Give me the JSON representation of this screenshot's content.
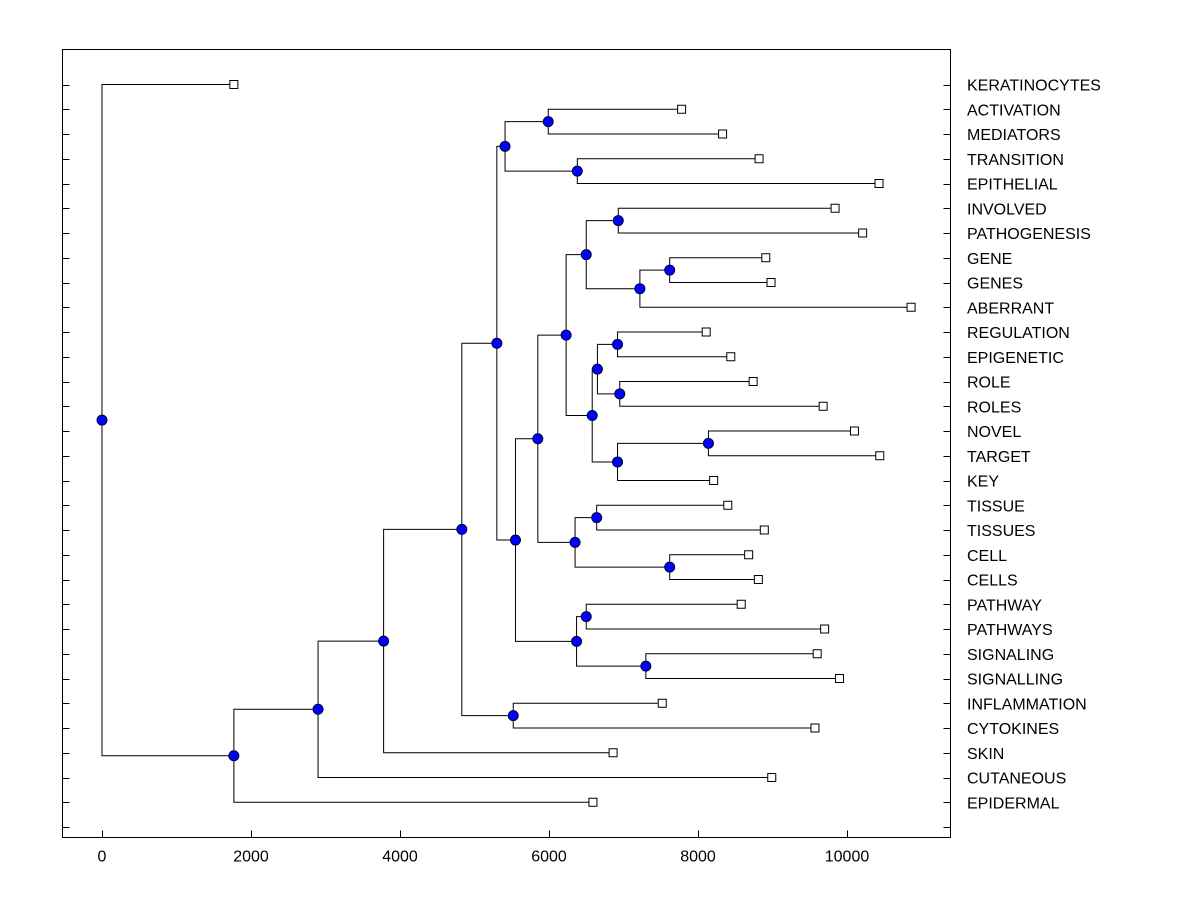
{
  "chart_data": {
    "type": "dendrogram",
    "x_axis": {
      "ticks": [
        0,
        2000,
        4000,
        6000,
        8000,
        10000
      ],
      "xlim": [
        -540,
        11400
      ]
    },
    "leaves": [
      {
        "label": "KERATINOCYTES",
        "height": 1770
      },
      {
        "label": "ACTIVATION",
        "height": 7780
      },
      {
        "label": "MEDIATORS",
        "height": 8330
      },
      {
        "label": "TRANSITION",
        "height": 8820
      },
      {
        "label": "EPITHELIAL",
        "height": 10430
      },
      {
        "label": "INVOLVED",
        "height": 9840
      },
      {
        "label": "PATHOGENESIS",
        "height": 10210
      },
      {
        "label": "GENE",
        "height": 8910
      },
      {
        "label": "GENES",
        "height": 8980
      },
      {
        "label": "ABERRANT",
        "height": 10860
      },
      {
        "label": "REGULATION",
        "height": 8110
      },
      {
        "label": "EPIGENETIC",
        "height": 8440
      },
      {
        "label": "ROLE",
        "height": 8740
      },
      {
        "label": "ROLES",
        "height": 9680
      },
      {
        "label": "NOVEL",
        "height": 10100
      },
      {
        "label": "TARGET",
        "height": 10440
      },
      {
        "label": "KEY",
        "height": 8210
      },
      {
        "label": "TISSUE",
        "height": 8400
      },
      {
        "label": "TISSUES",
        "height": 8890
      },
      {
        "label": "CELL",
        "height": 8680
      },
      {
        "label": "CELLS",
        "height": 8810
      },
      {
        "label": "PATHWAY",
        "height": 8580
      },
      {
        "label": "PATHWAYS",
        "height": 9700
      },
      {
        "label": "SIGNALING",
        "height": 9600
      },
      {
        "label": "SIGNALLING",
        "height": 9900
      },
      {
        "label": "INFLAMMATION",
        "height": 7520
      },
      {
        "label": "CYTOKINES",
        "height": 9570
      },
      {
        "label": "SKIN",
        "height": 6860
      },
      {
        "label": "CUTANEOUS",
        "height": 8990
      },
      {
        "label": "EPIDERMAL",
        "height": 6590
      }
    ],
    "merges": [
      {
        "id": 1,
        "children": [
          "L1",
          "L2"
        ],
        "height": 5990
      },
      {
        "id": 2,
        "children": [
          "L3",
          "L4"
        ],
        "height": 6380
      },
      {
        "id": 3,
        "children": [
          "N1",
          "N2"
        ],
        "height": 5410
      },
      {
        "id": 4,
        "children": [
          "L5",
          "L6"
        ],
        "height": 6930
      },
      {
        "id": 5,
        "children": [
          "L7",
          "L8"
        ],
        "height": 7620
      },
      {
        "id": 6,
        "children": [
          "N5",
          "L9"
        ],
        "height": 7220
      },
      {
        "id": 7,
        "children": [
          "N4",
          "N6"
        ],
        "height": 6500
      },
      {
        "id": 8,
        "children": [
          "L10",
          "L11"
        ],
        "height": 6920
      },
      {
        "id": 9,
        "children": [
          "L12",
          "L13"
        ],
        "height": 6950
      },
      {
        "id": 10,
        "children": [
          "N8",
          "N9"
        ],
        "height": 6650
      },
      {
        "id": 11,
        "children": [
          "L14",
          "L15"
        ],
        "height": 8140
      },
      {
        "id": 12,
        "children": [
          "N11",
          "L16"
        ],
        "height": 6920
      },
      {
        "id": 13,
        "children": [
          "N10",
          "N12"
        ],
        "height": 6580
      },
      {
        "id": 14,
        "children": [
          "N7",
          "N13"
        ],
        "height": 6230
      },
      {
        "id": 15,
        "children": [
          "L17",
          "L18"
        ],
        "height": 6640
      },
      {
        "id": 16,
        "children": [
          "L19",
          "L20"
        ],
        "height": 7620
      },
      {
        "id": 17,
        "children": [
          "N15",
          "N16"
        ],
        "height": 6350
      },
      {
        "id": 18,
        "children": [
          "N14",
          "N17"
        ],
        "height": 5850
      },
      {
        "id": 19,
        "children": [
          "L21",
          "L22"
        ],
        "height": 6500
      },
      {
        "id": 20,
        "children": [
          "L23",
          "L24"
        ],
        "height": 7300
      },
      {
        "id": 21,
        "children": [
          "N19",
          "N20"
        ],
        "height": 6370
      },
      {
        "id": 22,
        "children": [
          "N18",
          "N21"
        ],
        "height": 5550
      },
      {
        "id": 23,
        "children": [
          "N3",
          "N22"
        ],
        "height": 5300
      },
      {
        "id": 24,
        "children": [
          "L25",
          "L26"
        ],
        "height": 5520
      },
      {
        "id": 25,
        "children": [
          "N23",
          "N24"
        ],
        "height": 4830
      },
      {
        "id": 26,
        "children": [
          "N25",
          "L27"
        ],
        "height": 3780
      },
      {
        "id": 27,
        "children": [
          "N26",
          "L28"
        ],
        "height": 2900
      },
      {
        "id": 28,
        "children": [
          "N27",
          "L29"
        ],
        "height": 1770
      },
      {
        "id": 29,
        "children": [
          "L0",
          "N28"
        ],
        "height": 0
      }
    ],
    "grid": false,
    "legend": "none"
  }
}
